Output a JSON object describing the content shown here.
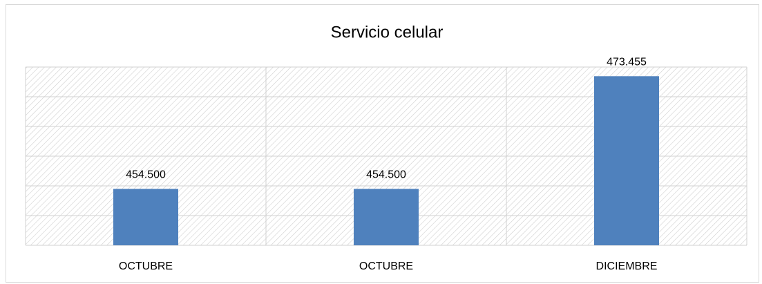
{
  "chart_data": {
    "type": "bar",
    "title": "Servicio celular",
    "categories": [
      "OCTUBRE",
      "OCTUBRE",
      "DICIEMBRE"
    ],
    "values": [
      454500,
      454500,
      473455
    ],
    "value_labels": [
      "454.500",
      "454.500",
      "473.455"
    ],
    "color": "#4f81bd",
    "ylim": [
      445000,
      475000
    ],
    "yticks": [
      445000,
      450000,
      455000,
      460000,
      465000,
      470000,
      475000
    ],
    "grid": true
  }
}
